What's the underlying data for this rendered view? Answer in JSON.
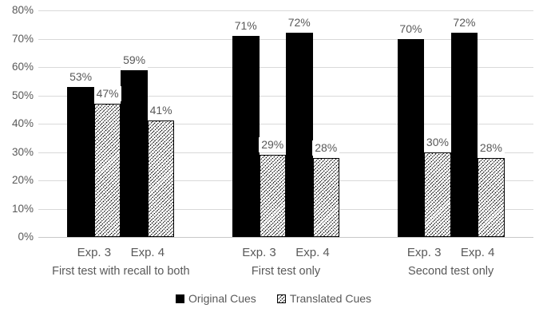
{
  "colors": {
    "bar_solid": "#000000",
    "hatch_line": "#000000",
    "text": "#595959",
    "gridline": "#d9d9d9",
    "axis_line": "#c9c9c9",
    "background": "#ffffff",
    "data_label_background": "#ffffff"
  },
  "legend": {
    "position": "bottom",
    "items": [
      {
        "label": "Original Cues",
        "swatch": "solid-black-square"
      },
      {
        "label": "Translated Cues",
        "swatch": "diagonal-hatch-square"
      }
    ]
  },
  "chart_data": {
    "type": "bar",
    "title": "",
    "xlabel": "",
    "ylabel": "",
    "grid": true,
    "legend_position": "bottom",
    "categories": [
      "First test with recall to both",
      "First test only",
      "Second test only"
    ],
    "subcategories": [
      "Exp. 3",
      "Exp. 4"
    ],
    "series": [
      {
        "name": "Original Cues",
        "fill": "solid-black",
        "values": [
          [
            53,
            59
          ],
          [
            71,
            72
          ],
          [
            70,
            72
          ]
        ],
        "labels": [
          [
            "53%",
            "59%"
          ],
          [
            "71%",
            "72%"
          ],
          [
            "70%",
            "72%"
          ]
        ]
      },
      {
        "name": "Translated Cues",
        "fill": "diagonal-hatch",
        "values": [
          [
            47,
            41
          ],
          [
            29,
            28
          ],
          [
            30,
            28
          ]
        ],
        "labels": [
          [
            "47%",
            "41%"
          ],
          [
            "29%",
            "28%"
          ],
          [
            "30%",
            "28%"
          ]
        ]
      }
    ],
    "y_axis": {
      "min": 0,
      "max": 80,
      "step": 10,
      "tick_labels": [
        "0%",
        "10%",
        "20%",
        "30%",
        "40%",
        "50%",
        "60%",
        "70%",
        "80%"
      ]
    },
    "data_label_suffix": "%"
  }
}
